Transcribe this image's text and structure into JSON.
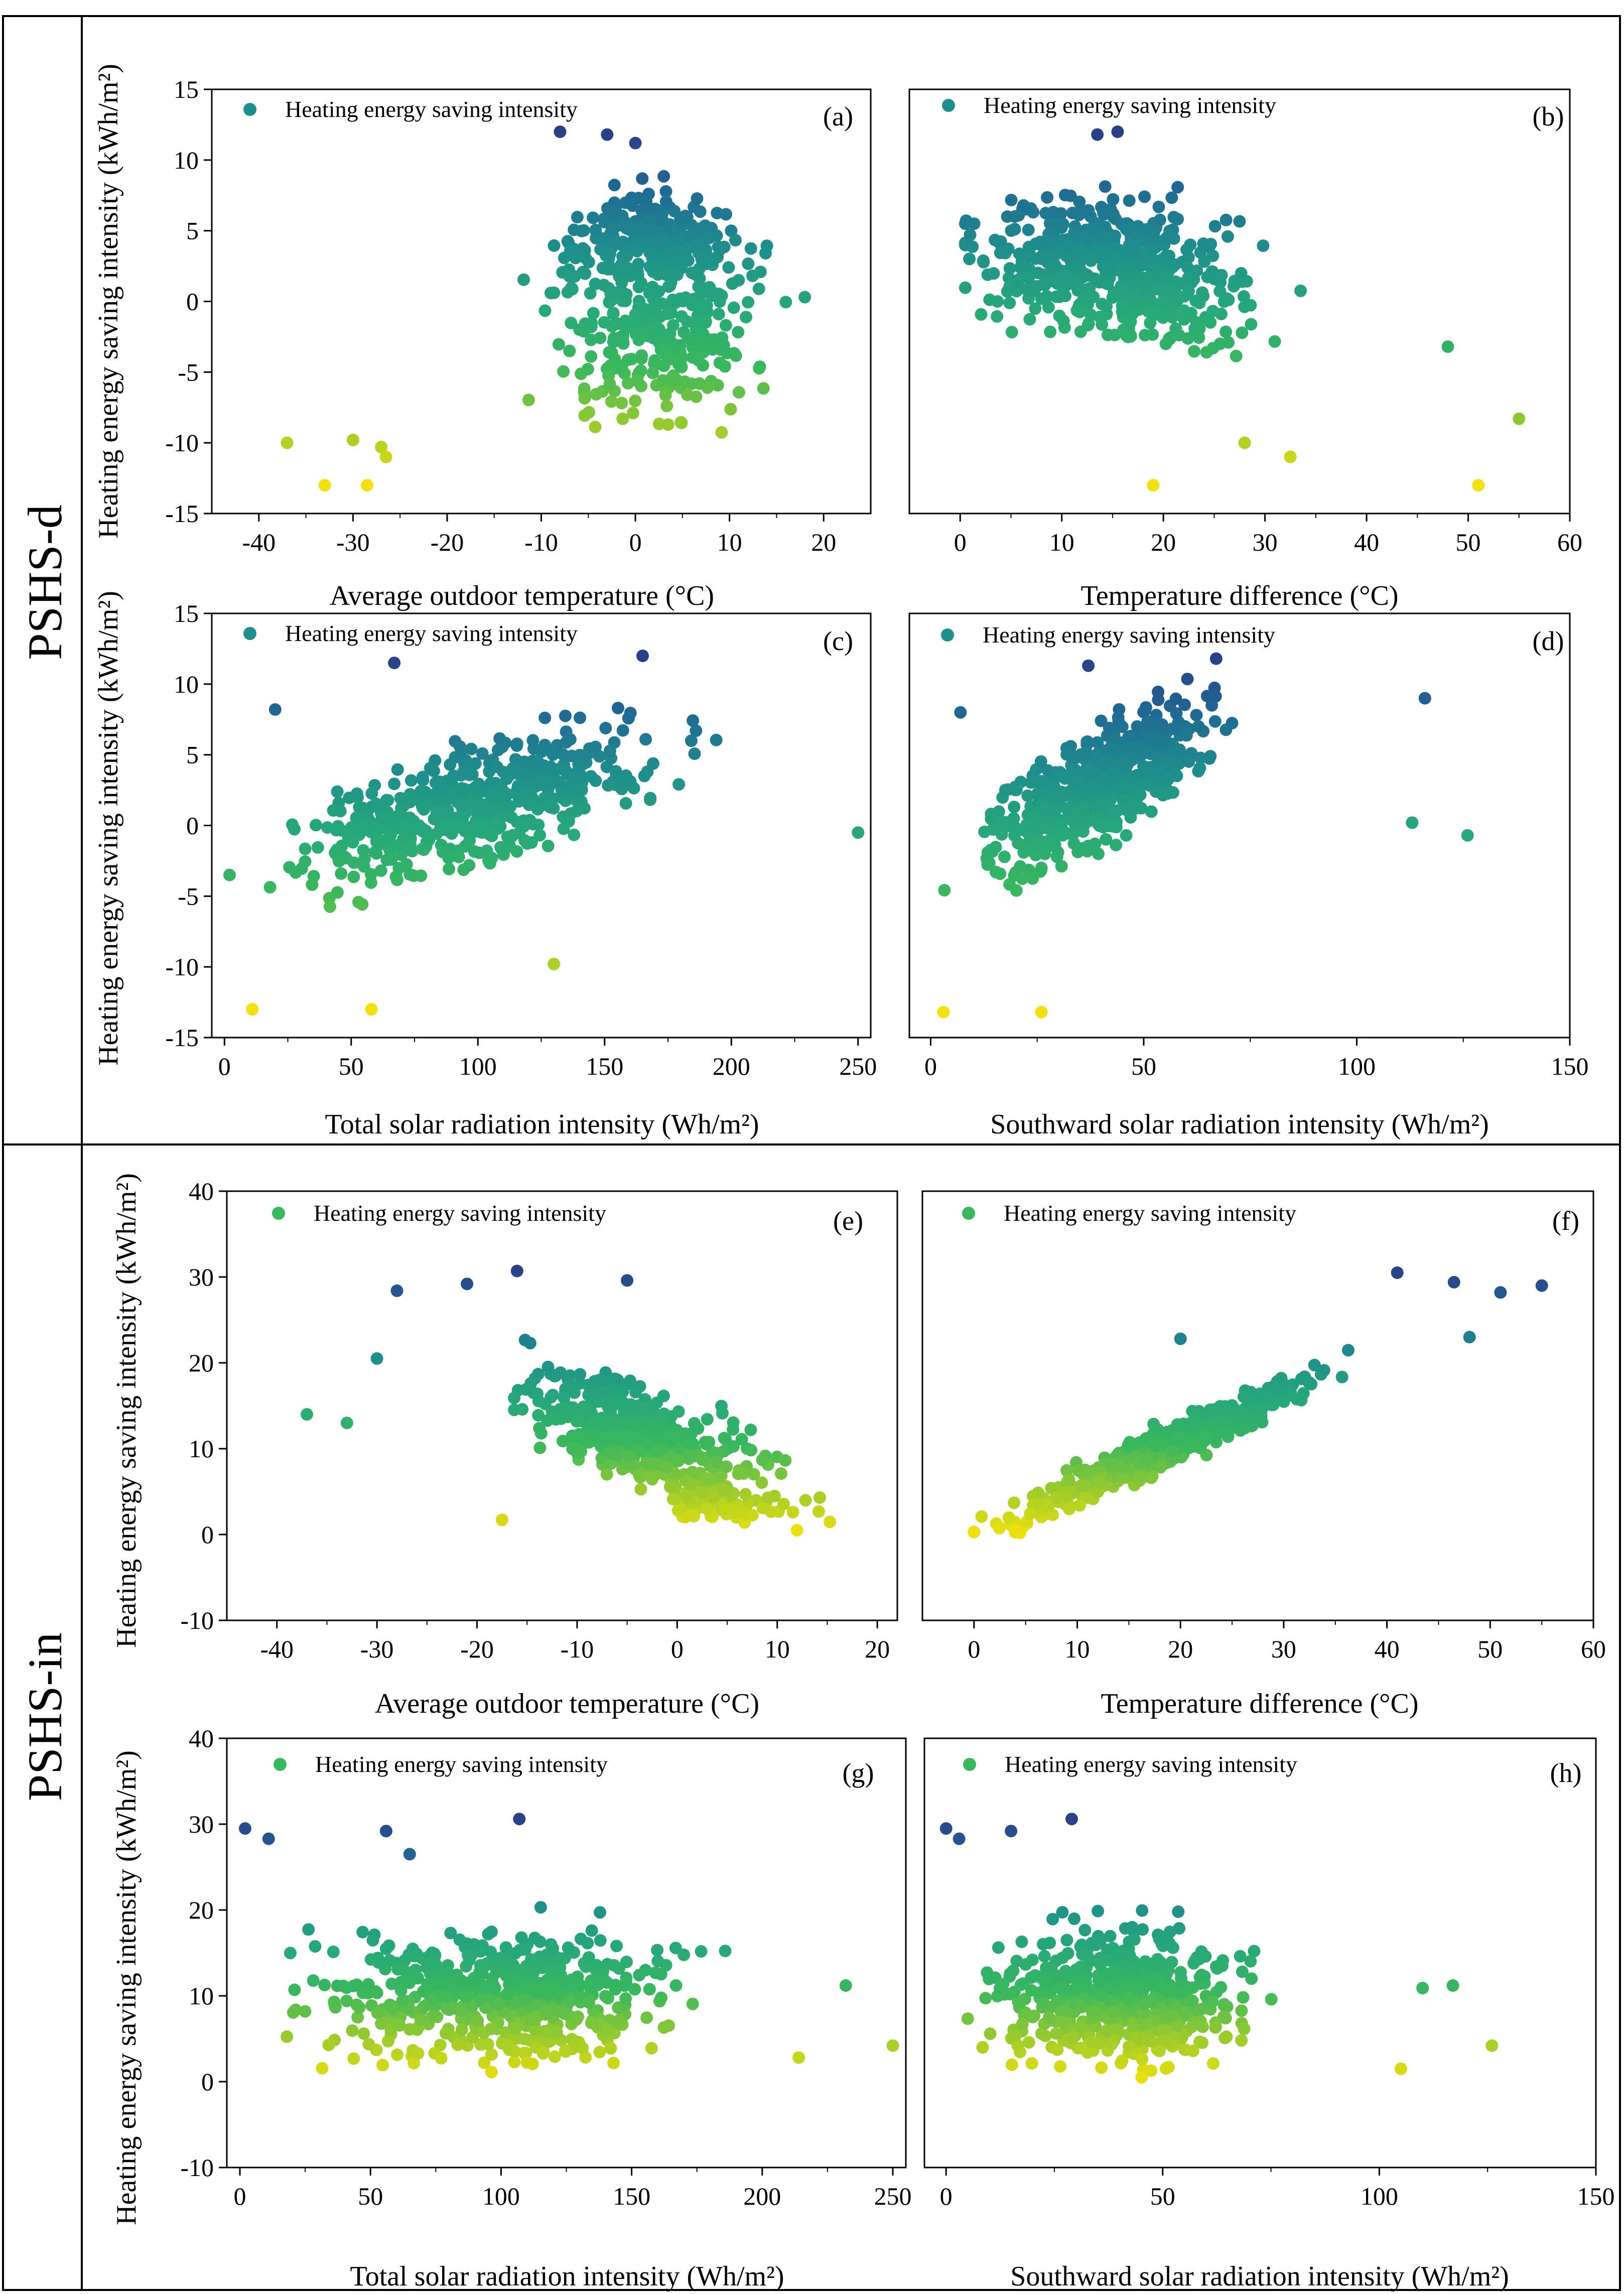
{
  "figure": {
    "title": "",
    "groups": [
      {
        "label": "PSHS-d"
      },
      {
        "label": "PSHS-in"
      }
    ],
    "colors": {
      "deep_blue": "#2b3f88",
      "teal_blue": "#1f6a94",
      "teal": "#1f8f8c",
      "green_teal": "#26a87a",
      "green": "#3ab85c",
      "yellow_green": "#9acb2c",
      "yellow": "#f2e20a",
      "legend_marker_d": "#1f8f8c",
      "legend_marker_in": "#3ab85c"
    }
  },
  "chart_data": [
    {
      "id": "a",
      "type": "scatter",
      "tag": "(a)",
      "xlabel": "Average outdoor temperature (°C)",
      "ylabel": "Heating energy saving intensity (kWh/m²)",
      "legend": "Heating energy saving intensity",
      "xlim": [
        -45,
        25
      ],
      "ylim": [
        -15,
        15
      ],
      "xticks": [
        -40,
        -30,
        -20,
        -10,
        0,
        10,
        20
      ],
      "yticks": [
        -15,
        -10,
        -5,
        0,
        5,
        10,
        15
      ],
      "color_range": [
        -13,
        12
      ],
      "seed": 11,
      "n": 520,
      "model": "a",
      "highlights": [
        [
          -37,
          -10
        ],
        [
          -33,
          -13
        ],
        [
          -30,
          -9.8
        ],
        [
          -28.5,
          -13
        ],
        [
          -27,
          -10.3
        ],
        [
          -26.5,
          -11
        ],
        [
          -8,
          12
        ],
        [
          0,
          11.2
        ],
        [
          -3,
          11.8
        ],
        [
          18,
          0.3
        ]
      ]
    },
    {
      "id": "b",
      "type": "scatter",
      "tag": "(b)",
      "xlabel": "Temperature difference (°C)",
      "ylabel": "",
      "legend": "Heating energy saving intensity",
      "xlim": [
        -5,
        60
      ],
      "ylim": [
        -15,
        15
      ],
      "xticks": [
        0,
        10,
        20,
        30,
        40,
        50,
        60
      ],
      "yticks": [],
      "color_range": [
        -13,
        12
      ],
      "seed": 23,
      "n": 520,
      "model": "b",
      "highlights": [
        [
          19,
          -13
        ],
        [
          51,
          -13
        ],
        [
          32.5,
          -11
        ],
        [
          28,
          -10
        ],
        [
          55,
          -8.3
        ],
        [
          13.5,
          11.8
        ],
        [
          15.5,
          12
        ],
        [
          48,
          -3.2
        ]
      ]
    },
    {
      "id": "c",
      "type": "scatter",
      "tag": "(c)",
      "xlabel": "Total solar radiation intensity (Wh/m²)",
      "ylabel": "Heating energy saving intensity (kWh/m²)",
      "legend": "Heating energy saving intensity",
      "xlim": [
        -5,
        255
      ],
      "ylim": [
        -15,
        15
      ],
      "xticks": [
        0,
        50,
        100,
        150,
        200,
        250
      ],
      "yticks": [
        -15,
        -10,
        -5,
        0,
        5,
        10,
        15
      ],
      "color_range": [
        -13,
        12
      ],
      "seed": 37,
      "n": 520,
      "model": "c",
      "highlights": [
        [
          11,
          -13
        ],
        [
          58,
          -13
        ],
        [
          67,
          11.5
        ],
        [
          165,
          12
        ],
        [
          250,
          -0.5
        ],
        [
          2,
          -3.5
        ],
        [
          130,
          -9.8
        ],
        [
          20,
          8.2
        ]
      ]
    },
    {
      "id": "d",
      "type": "scatter",
      "tag": "(d)",
      "xlabel": "Southward solar radiation intensity (Wh/m²)",
      "ylabel": "",
      "legend": "Heating energy saving intensity",
      "xlim": [
        -5,
        150
      ],
      "ylim": [
        -15,
        15
      ],
      "xticks": [
        0,
        50,
        100,
        150
      ],
      "yticks": [],
      "color_range": [
        -13,
        12
      ],
      "seed": 41,
      "n": 520,
      "model": "d",
      "highlights": [
        [
          3,
          -13.2
        ],
        [
          26,
          -13.2
        ],
        [
          37,
          11.3
        ],
        [
          67,
          11.8
        ],
        [
          126,
          -0.7
        ],
        [
          116,
          9
        ],
        [
          113,
          0.2
        ],
        [
          7,
          8
        ]
      ]
    },
    {
      "id": "e",
      "type": "scatter",
      "tag": "(e)",
      "xlabel": "Average outdoor temperature (°C)",
      "ylabel": "Heating energy saving intensity (kWh/m²)",
      "legend": "Heating energy saving intensity",
      "xlim": [
        -45,
        22
      ],
      "ylim": [
        -10,
        40
      ],
      "xticks": [
        -40,
        -30,
        -20,
        -10,
        0,
        10,
        20
      ],
      "yticks": [
        -10,
        0,
        10,
        20,
        30,
        40
      ],
      "color_range": [
        0,
        31
      ],
      "seed": 53,
      "n": 560,
      "model": "e",
      "highlights": [
        [
          -28,
          28.4
        ],
        [
          -21,
          29.2
        ],
        [
          -16,
          30.7
        ],
        [
          -5,
          29.6
        ],
        [
          -37,
          14
        ],
        [
          -33,
          13
        ],
        [
          -17.5,
          1.7
        ],
        [
          -30,
          20.5
        ]
      ]
    },
    {
      "id": "f",
      "type": "scatter",
      "tag": "(f)",
      "xlabel": "Temperature difference (°C)",
      "ylabel": "",
      "legend": "Heating energy saving intensity",
      "xlim": [
        -5,
        60
      ],
      "ylim": [
        -10,
        40
      ],
      "xticks": [
        0,
        10,
        20,
        30,
        40,
        50,
        60
      ],
      "yticks": [],
      "color_range": [
        0,
        31
      ],
      "seed": 67,
      "n": 560,
      "model": "f",
      "highlights": [
        [
          41,
          30.5
        ],
        [
          46.5,
          29.4
        ],
        [
          51,
          28.2
        ],
        [
          55,
          29
        ],
        [
          48,
          23
        ],
        [
          20,
          22.8
        ],
        [
          0,
          0.3
        ]
      ]
    },
    {
      "id": "g",
      "type": "scatter",
      "tag": "(g)",
      "xlabel": "Total solar radiation intensity (Wh/m²)",
      "ylabel": "Heating energy saving intensity (kWh/m²)",
      "legend": "Heating energy saving intensity",
      "xlim": [
        -5,
        255
      ],
      "ylim": [
        -10,
        40
      ],
      "xticks": [
        0,
        50,
        100,
        150,
        200,
        250
      ],
      "yticks": [
        -10,
        0,
        10,
        20,
        30,
        40
      ],
      "color_range": [
        0,
        31
      ],
      "seed": 71,
      "n": 560,
      "model": "g",
      "highlights": [
        [
          2,
          29.5
        ],
        [
          11,
          28.3
        ],
        [
          56,
          29.2
        ],
        [
          107,
          30.6
        ],
        [
          250,
          4.2
        ],
        [
          232,
          11.2
        ],
        [
          214,
          2.8
        ],
        [
          65,
          26.5
        ]
      ]
    },
    {
      "id": "h",
      "type": "scatter",
      "tag": "(h)",
      "xlabel": "Southward solar radiation intensity (Wh/m²)",
      "ylabel": "",
      "legend": "Heating energy saving intensity",
      "xlim": [
        -5,
        150
      ],
      "ylim": [
        -10,
        40
      ],
      "xticks": [
        0,
        50,
        100,
        150
      ],
      "yticks": [],
      "color_range": [
        0,
        31
      ],
      "seed": 83,
      "n": 560,
      "model": "h",
      "highlights": [
        [
          0,
          29.5
        ],
        [
          3,
          28.3
        ],
        [
          15,
          29.2
        ],
        [
          29,
          30.6
        ],
        [
          126,
          4.2
        ],
        [
          117,
          11.2
        ],
        [
          110,
          10.9
        ],
        [
          105,
          1.5
        ]
      ]
    }
  ]
}
